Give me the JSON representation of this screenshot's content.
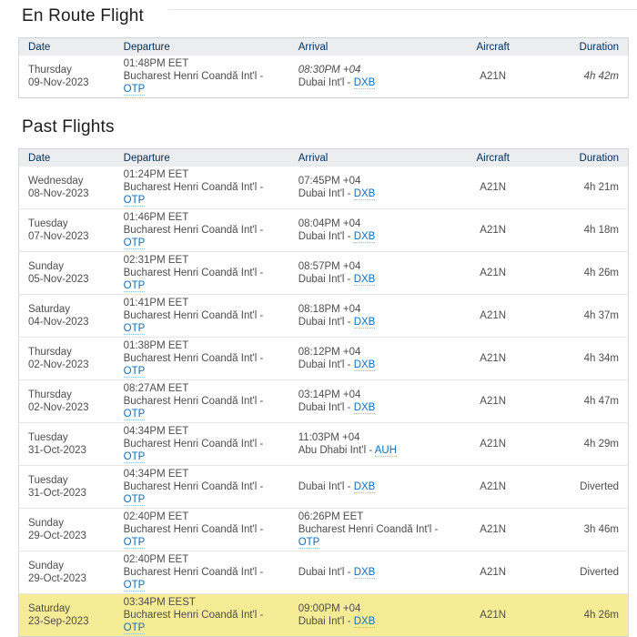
{
  "labels": {
    "separator": " - "
  },
  "headings": {
    "en_route": "En Route Flight",
    "past": "Past Flights"
  },
  "columns": [
    "Date",
    "Departure",
    "Arrival",
    "Aircraft",
    "Duration"
  ],
  "colors": {
    "link": "#0f6eba",
    "header-bg": "#ecedef",
    "header-text": "#002f5d",
    "highlight": "#f7ec96"
  },
  "en_route": {
    "rows": [
      {
        "day": "Thursday",
        "date": "09-Nov-2023",
        "dep_time": "01:48PM EET",
        "dep_airport": "Bucharest Henri Coandă Int'l",
        "dep_code": "OTP",
        "arr_time": "08:30PM +04",
        "arr_airport": "Dubai Int'l",
        "arr_code": "DXB",
        "aircraft": "A21N",
        "duration": "4h 42m",
        "estimated": true,
        "highlight": false
      }
    ]
  },
  "past": {
    "rows": [
      {
        "day": "Wednesday",
        "date": "08-Nov-2023",
        "dep_time": "01:24PM EET",
        "dep_airport": "Bucharest Henri Coandă Int'l",
        "dep_code": "OTP",
        "arr_time": "07:45PM +04",
        "arr_airport": "Dubai Int'l",
        "arr_code": "DXB",
        "aircraft": "A21N",
        "duration": "4h 21m",
        "estimated": false,
        "highlight": false
      },
      {
        "day": "Tuesday",
        "date": "07-Nov-2023",
        "dep_time": "01:46PM EET",
        "dep_airport": "Bucharest Henri Coandă Int'l",
        "dep_code": "OTP",
        "arr_time": "08:04PM +04",
        "arr_airport": "Dubai Int'l",
        "arr_code": "DXB",
        "aircraft": "A21N",
        "duration": "4h 18m",
        "estimated": false,
        "highlight": false
      },
      {
        "day": "Sunday",
        "date": "05-Nov-2023",
        "dep_time": "02:31PM EET",
        "dep_airport": "Bucharest Henri Coandă Int'l",
        "dep_code": "OTP",
        "arr_time": "08:57PM +04",
        "arr_airport": "Dubai Int'l",
        "arr_code": "DXB",
        "aircraft": "A21N",
        "duration": "4h 26m",
        "estimated": false,
        "highlight": false
      },
      {
        "day": "Saturday",
        "date": "04-Nov-2023",
        "dep_time": "01:41PM EET",
        "dep_airport": "Bucharest Henri Coandă Int'l",
        "dep_code": "OTP",
        "arr_time": "08:18PM +04",
        "arr_airport": "Dubai Int'l",
        "arr_code": "DXB",
        "aircraft": "A21N",
        "duration": "4h 37m",
        "estimated": false,
        "highlight": false
      },
      {
        "day": "Thursday",
        "date": "02-Nov-2023",
        "dep_time": "01:38PM EET",
        "dep_airport": "Bucharest Henri Coandă Int'l",
        "dep_code": "OTP",
        "arr_time": "08:12PM +04",
        "arr_airport": "Dubai Int'l",
        "arr_code": "DXB",
        "aircraft": "A21N",
        "duration": "4h 34m",
        "estimated": false,
        "highlight": false
      },
      {
        "day": "Thursday",
        "date": "02-Nov-2023",
        "dep_time": "08:27AM EET",
        "dep_airport": "Bucharest Henri Coandă Int'l",
        "dep_code": "OTP",
        "arr_time": "03:14PM +04",
        "arr_airport": "Dubai Int'l",
        "arr_code": "DXB",
        "aircraft": "A21N",
        "duration": "4h 47m",
        "estimated": false,
        "highlight": false
      },
      {
        "day": "Tuesday",
        "date": "31-Oct-2023",
        "dep_time": "04:34PM EET",
        "dep_airport": "Bucharest Henri Coandă Int'l",
        "dep_code": "OTP",
        "arr_time": "11:03PM +04",
        "arr_airport": "Abu Dhabi Int'l",
        "arr_code": "AUH",
        "aircraft": "A21N",
        "duration": "4h 29m",
        "estimated": false,
        "highlight": false
      },
      {
        "day": "Tuesday",
        "date": "31-Oct-2023",
        "dep_time": "04:34PM EET",
        "dep_airport": "Bucharest Henri Coandă Int'l",
        "dep_code": "OTP",
        "arr_time": "",
        "arr_airport": "Dubai Int'l",
        "arr_code": "DXB",
        "aircraft": "A21N",
        "duration": "Diverted",
        "estimated": false,
        "highlight": false
      },
      {
        "day": "Sunday",
        "date": "29-Oct-2023",
        "dep_time": "02:40PM EET",
        "dep_airport": "Bucharest Henri Coandă Int'l",
        "dep_code": "OTP",
        "arr_time": "06:26PM EET",
        "arr_airport": "Bucharest Henri Coandă Int'l",
        "arr_code": "OTP",
        "aircraft": "A21N",
        "duration": "3h 46m",
        "estimated": false,
        "highlight": false
      },
      {
        "day": "Sunday",
        "date": "29-Oct-2023",
        "dep_time": "02:40PM EET",
        "dep_airport": "Bucharest Henri Coandă Int'l",
        "dep_code": "OTP",
        "arr_time": "",
        "arr_airport": "Dubai Int'l",
        "arr_code": "DXB",
        "aircraft": "A21N",
        "duration": "Diverted",
        "estimated": false,
        "highlight": false
      },
      {
        "day": "Saturday",
        "date": "23-Sep-2023",
        "dep_time": "03:34PM EEST",
        "dep_airport": "Bucharest Henri Coandă Int'l",
        "dep_code": "OTP",
        "arr_time": "09:00PM +04",
        "arr_airport": "Dubai Int'l",
        "arr_code": "DXB",
        "aircraft": "A21N",
        "duration": "4h 26m",
        "estimated": false,
        "highlight": true
      }
    ]
  }
}
